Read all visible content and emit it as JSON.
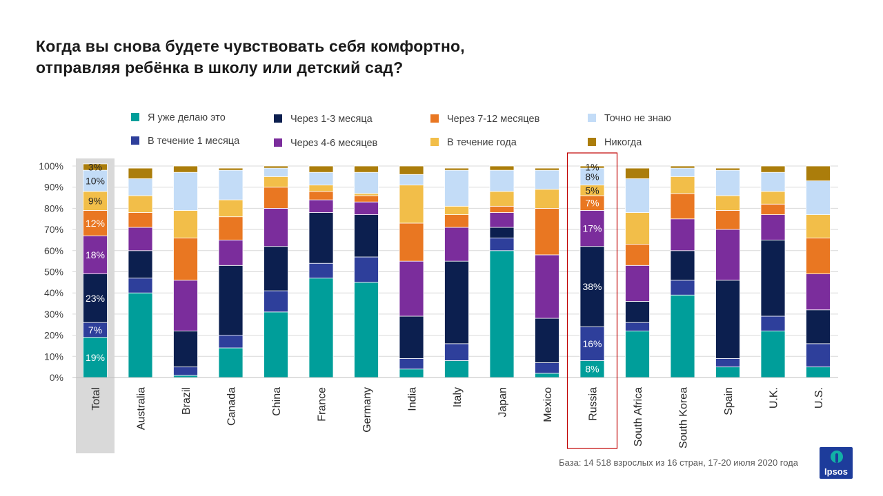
{
  "title": {
    "line1": "Когда вы снова будете чувствовать себя комфортно,",
    "line2": "отправляя ребёнка в школу или детский сад?"
  },
  "source": "База: 14 518 взрослых из 16 стран, 17-20 июля 2020 года",
  "logo": {
    "text": "Ipsos",
    "icon": "ipsos-logo-icon"
  },
  "colors": {
    "highlight_total_bg": "#d9d9d9",
    "highlight_russia_border": "#c00000"
  },
  "chart_data": {
    "type": "bar",
    "stacked": true,
    "yaxis": {
      "ticks": [
        "0%",
        "10%",
        "20%",
        "30%",
        "40%",
        "50%",
        "60%",
        "70%",
        "80%",
        "90%",
        "100%"
      ],
      "ylim": [
        0,
        100
      ]
    },
    "grid": true,
    "legend_placement": "top",
    "categories": [
      "Total",
      "Australia",
      "Brazil",
      "Canada",
      "China",
      "France",
      "Germany",
      "India",
      "Italy",
      "Japan",
      "Mexico",
      "Russia",
      "South Africa",
      "South Korea",
      "Spain",
      "U.K.",
      "U.S."
    ],
    "series": [
      {
        "name": "Я уже делаю это",
        "color": "#009e9a",
        "values": [
          19,
          40,
          1,
          14,
          31,
          47,
          45,
          4,
          8,
          60,
          2,
          8,
          22,
          39,
          5,
          22,
          5
        ]
      },
      {
        "name": "В течение  1 месяца",
        "color": "#2e3f9b",
        "values": [
          7,
          7,
          4,
          6,
          10,
          7,
          12,
          5,
          8,
          6,
          5,
          16,
          4,
          7,
          4,
          7,
          11
        ]
      },
      {
        "name": "Через 1-3 месяца",
        "color": "#0c1f4f",
        "values": [
          23,
          13,
          17,
          33,
          21,
          24,
          20,
          20,
          39,
          5,
          21,
          38,
          10,
          14,
          37,
          36,
          16
        ]
      },
      {
        "name": "Через 4-6 месяцев",
        "color": "#7b2d9c",
        "values": [
          18,
          11,
          24,
          12,
          18,
          6,
          6,
          26,
          16,
          7,
          30,
          17,
          17,
          15,
          24,
          12,
          17
        ]
      },
      {
        "name": "Через 7-12 месяцев",
        "color": "#e97722",
        "values": [
          12,
          7,
          20,
          11,
          10,
          4,
          3,
          18,
          6,
          3,
          22,
          7,
          10,
          12,
          9,
          5,
          17
        ]
      },
      {
        "name": "В течение года",
        "color": "#f2be49",
        "values": [
          9,
          8,
          13,
          8,
          5,
          3,
          1,
          18,
          4,
          7,
          9,
          5,
          15,
          8,
          7,
          6,
          11
        ]
      },
      {
        "name": "Точно не знаю",
        "color": "#c3dcf7",
        "values": [
          10,
          8,
          18,
          14,
          4,
          6,
          10,
          5,
          17,
          10,
          9,
          8,
          16,
          4,
          12,
          9,
          16
        ]
      },
      {
        "name": "Никогда",
        "color": "#ab7d0b",
        "values": [
          3,
          5,
          3,
          1,
          1,
          3,
          3,
          4,
          1,
          2,
          1,
          1,
          5,
          1,
          1,
          3,
          7
        ]
      }
    ],
    "data_labels": {
      "Total": [
        "19%",
        "7%",
        "23%",
        "18%",
        "12%",
        "9%",
        "10%",
        "3%"
      ],
      "Russia": [
        "8%",
        "16%",
        "38%",
        "17%",
        "7%",
        "5%",
        "8%",
        "1%"
      ]
    }
  }
}
